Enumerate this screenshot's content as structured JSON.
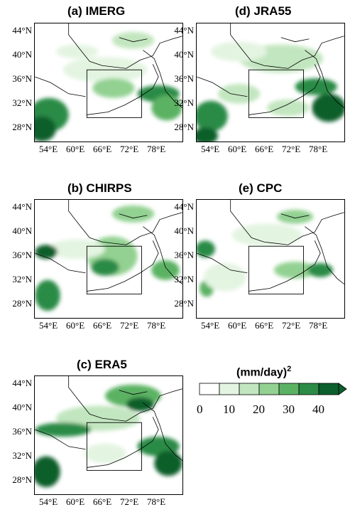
{
  "panels": [
    {
      "id": "a",
      "title": "(a) IMERG"
    },
    {
      "id": "d",
      "title": "(d) JRA55"
    },
    {
      "id": "b",
      "title": "(b) CHIRPS"
    },
    {
      "id": "e",
      "title": "(e) CPC"
    },
    {
      "id": "c",
      "title": "(c) ERA5"
    }
  ],
  "lat_ticks": [
    "44°N",
    "40°N",
    "36°N",
    "32°N",
    "28°N"
  ],
  "lon_ticks": [
    "54°E",
    "60°E",
    "66°E",
    "72°E",
    "78°E"
  ],
  "colorbar": {
    "unit": "(mm/day)",
    "unit_exp": "2",
    "labels": [
      "0",
      "10",
      "20",
      "30",
      "40"
    ],
    "colors": [
      "#ffffff",
      "#e3f4e1",
      "#c2e6bf",
      "#93d192",
      "#5cb264",
      "#2b8b47",
      "#0b5f2c"
    ]
  }
}
